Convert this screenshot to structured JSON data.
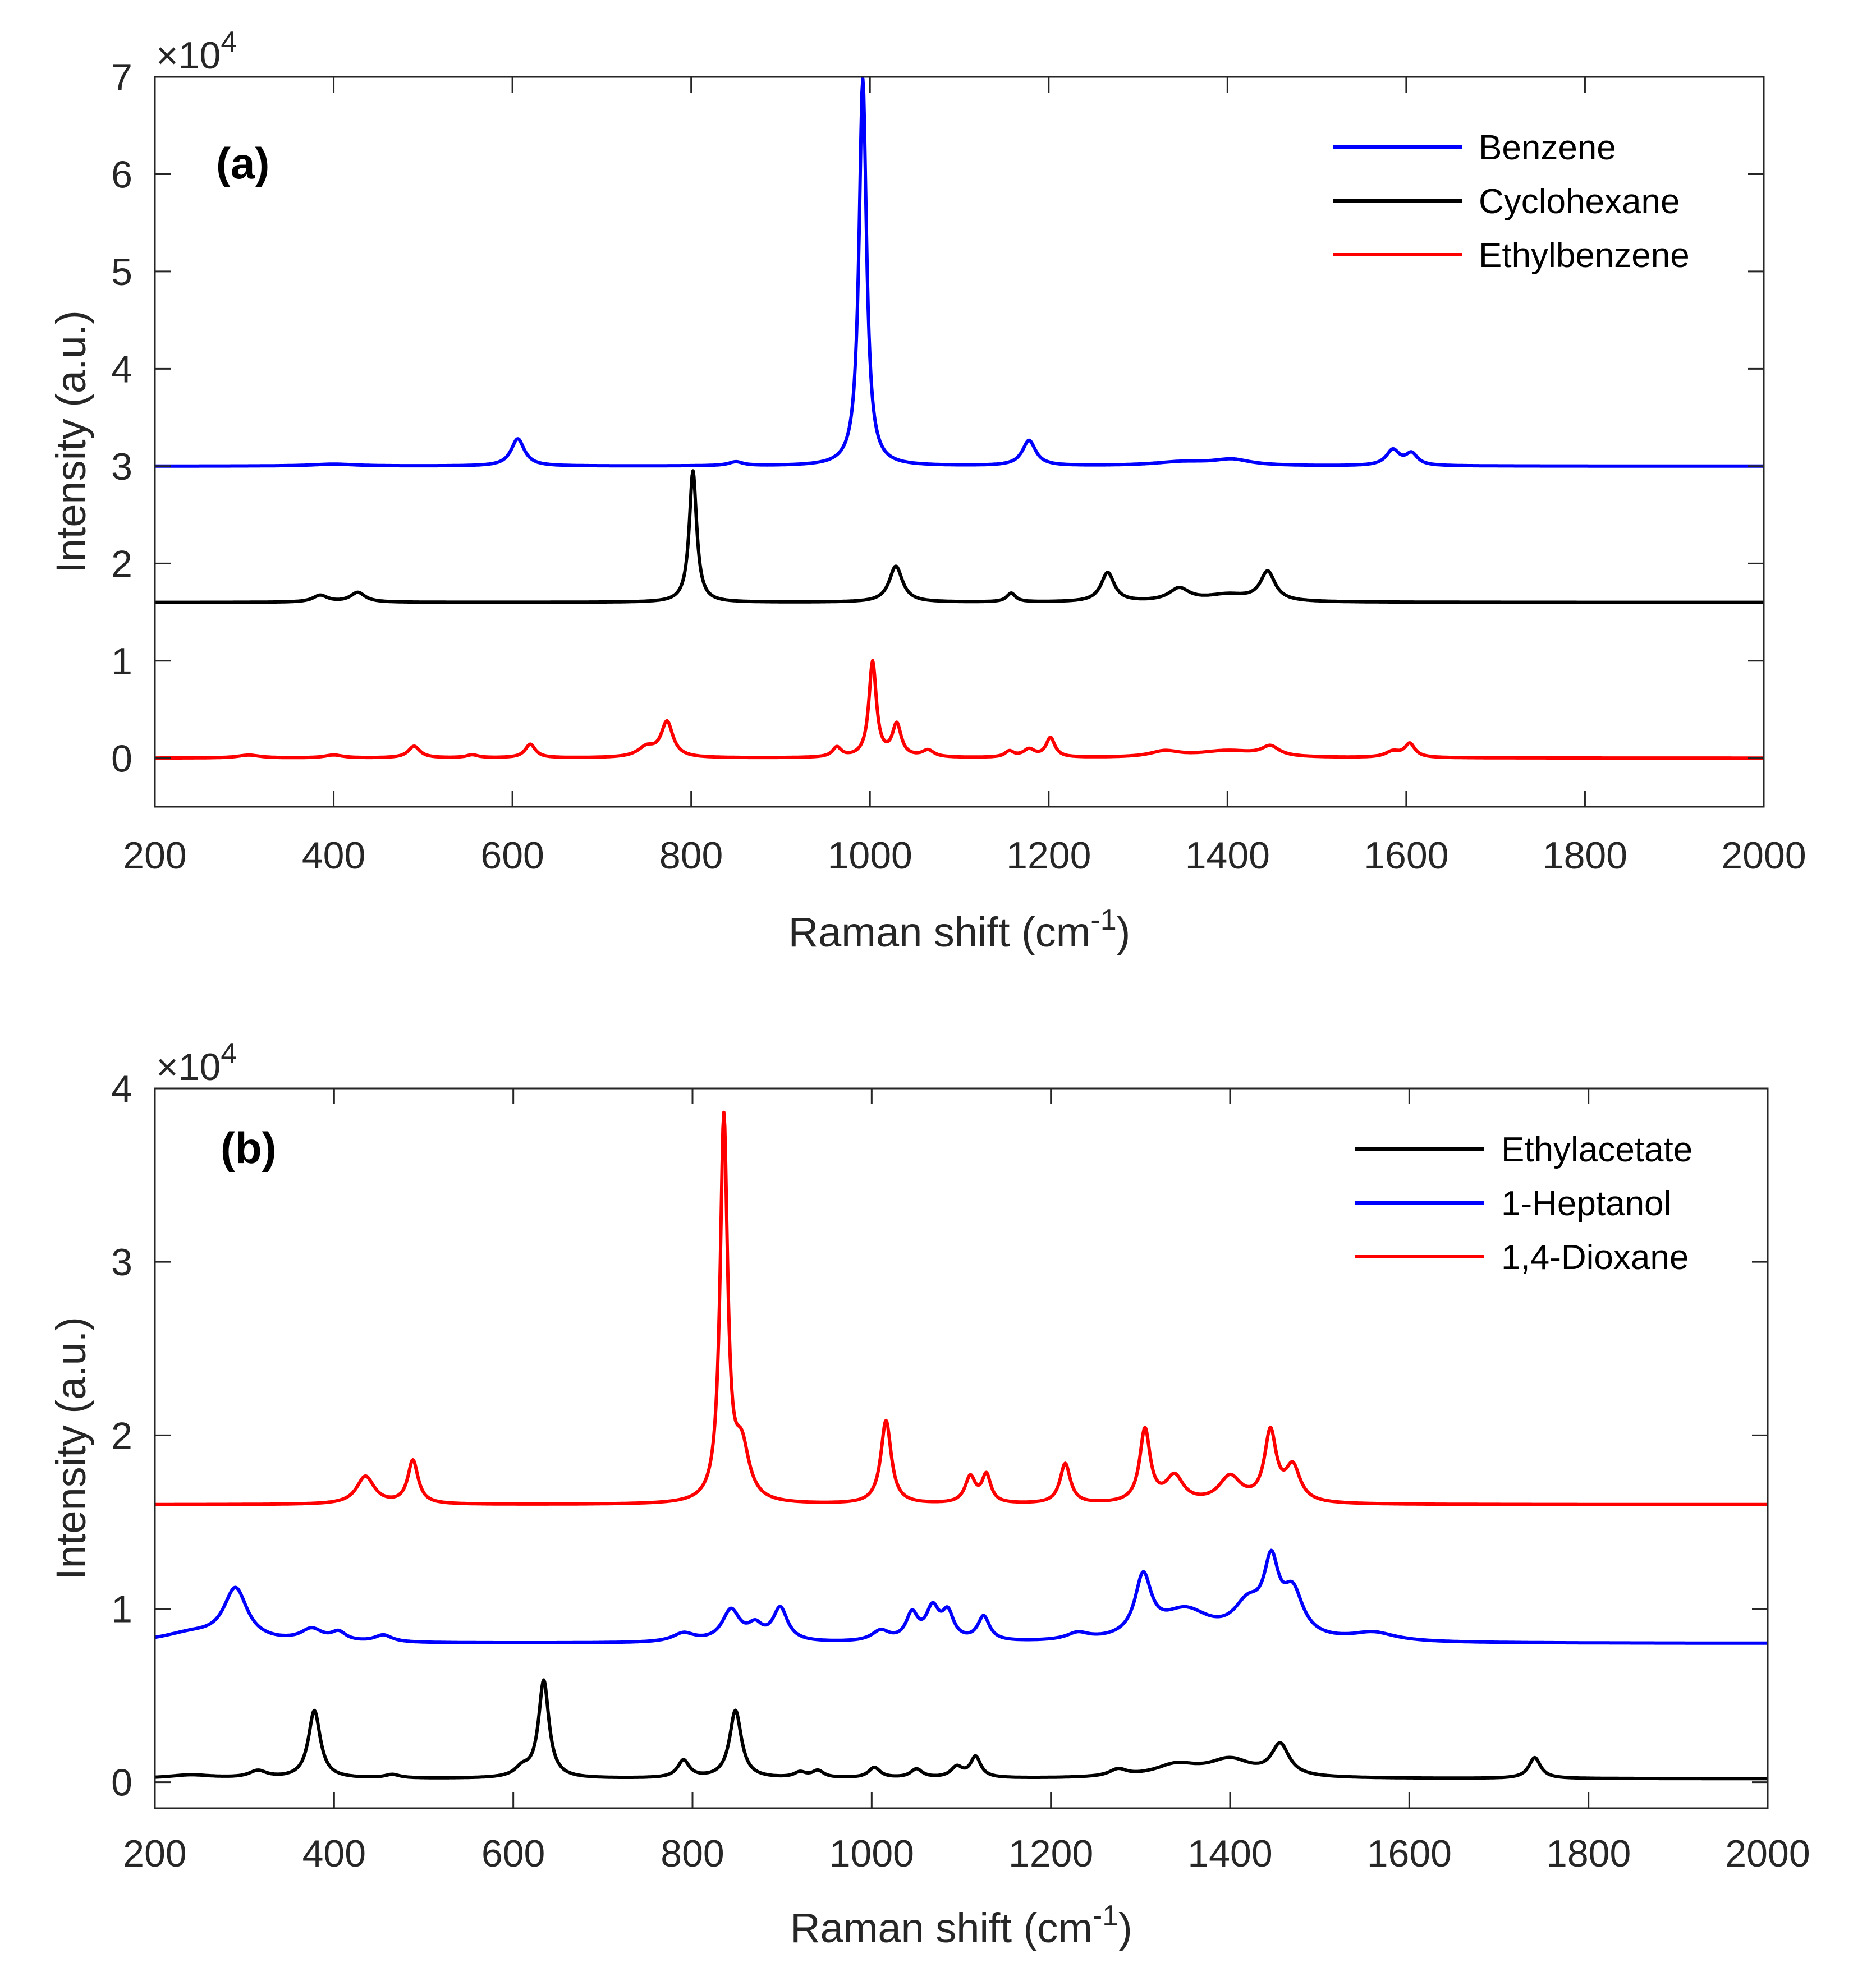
{
  "chart_data": [
    {
      "type": "line",
      "panel": "(a)",
      "xlabel": "Raman shift (cm",
      "xlabel_sup": "-1",
      "xlabel_end": ")",
      "ylabel": "Intensity (a.u.)",
      "exponent_label": "×10",
      "exponent_power": "4",
      "xlim": [
        200,
        2000
      ],
      "ylim": [
        -0.5,
        7
      ],
      "xticks": [
        200,
        400,
        600,
        800,
        1000,
        1200,
        1400,
        1600,
        1800,
        2000
      ],
      "yticks": [
        0,
        1,
        2,
        3,
        4,
        5,
        6,
        7
      ],
      "legend_position": "top-right",
      "series": [
        {
          "name": "Benzene",
          "color": "#0000ff",
          "baseline": 3.0,
          "peaks": [
            [
              400,
              0.02,
              30
            ],
            [
              606,
              0.28,
              9
            ],
            [
              850,
              0.04,
              10
            ],
            [
              992,
              3.98,
              5
            ],
            [
              1178,
              0.26,
              9
            ],
            [
              1350,
              0.04,
              40
            ],
            [
              1405,
              0.06,
              25
            ],
            [
              1585,
              0.16,
              9
            ],
            [
              1606,
              0.12,
              8
            ]
          ]
        },
        {
          "name": "Cyclohexane",
          "color": "#000000",
          "baseline": 1.6,
          "peaks": [
            [
              385,
              0.07,
              10
            ],
            [
              427,
              0.1,
              10
            ],
            [
              802,
              1.35,
              5
            ],
            [
              1029,
              0.37,
              9
            ],
            [
              1158,
              0.09,
              6
            ],
            [
              1266,
              0.3,
              9
            ],
            [
              1346,
              0.13,
              14
            ],
            [
              1400,
              0.07,
              30
            ],
            [
              1445,
              0.3,
              10
            ]
          ]
        },
        {
          "name": "Ethylbenzene",
          "color": "#ff0000",
          "baseline": 0.0,
          "peaks": [
            [
              305,
              0.03,
              15
            ],
            [
              400,
              0.03,
              12
            ],
            [
              490,
              0.12,
              8
            ],
            [
              555,
              0.03,
              8
            ],
            [
              620,
              0.14,
              7
            ],
            [
              750,
              0.1,
              12
            ],
            [
              773,
              0.36,
              8
            ],
            [
              963,
              0.1,
              6
            ],
            [
              1003,
              0.98,
              5
            ],
            [
              1030,
              0.33,
              6
            ],
            [
              1065,
              0.07,
              8
            ],
            [
              1156,
              0.06,
              6
            ],
            [
              1178,
              0.08,
              8
            ],
            [
              1202,
              0.2,
              6
            ],
            [
              1330,
              0.06,
              20
            ],
            [
              1400,
              0.07,
              40
            ],
            [
              1448,
              0.1,
              12
            ],
            [
              1585,
              0.06,
              10
            ],
            [
              1604,
              0.14,
              7
            ]
          ]
        }
      ]
    },
    {
      "type": "line",
      "panel": "(b)",
      "xlabel": "Raman shift (cm",
      "xlabel_sup": "-1",
      "xlabel_end": ")",
      "ylabel": "Intensity (a.u.)",
      "exponent_label": "×10",
      "exponent_power": "4",
      "xlim": [
        200,
        2000
      ],
      "ylim": [
        -0.15,
        4
      ],
      "xticks": [
        200,
        400,
        600,
        800,
        1000,
        1200,
        1400,
        1600,
        1800,
        2000
      ],
      "yticks": [
        0,
        1,
        2,
        3,
        4
      ],
      "legend_position": "top-right",
      "series": [
        {
          "name": "Ethylacetate",
          "color": "#000000",
          "baseline": 0.02,
          "peaks": [
            [
              240,
              0.02,
              30
            ],
            [
              315,
              0.04,
              12
            ],
            [
              378,
              0.39,
              8
            ],
            [
              465,
              0.02,
              10
            ],
            [
              610,
              0.05,
              10
            ],
            [
              634,
              0.56,
              7
            ],
            [
              790,
              0.1,
              8
            ],
            [
              848,
              0.39,
              8
            ],
            [
              920,
              0.03,
              8
            ],
            [
              940,
              0.04,
              8
            ],
            [
              1003,
              0.06,
              8
            ],
            [
              1050,
              0.05,
              8
            ],
            [
              1095,
              0.06,
              8
            ],
            [
              1116,
              0.12,
              7
            ],
            [
              1275,
              0.04,
              12
            ],
            [
              1340,
              0.07,
              30
            ],
            [
              1400,
              0.1,
              30
            ],
            [
              1456,
              0.18,
              12
            ],
            [
              1740,
              0.12,
              8
            ]
          ]
        },
        {
          "name": "1-Heptanol",
          "color": "#0000ff",
          "baseline": 0.8,
          "peaks": [
            [
              240,
              0.05,
              40
            ],
            [
              290,
              0.3,
              16
            ],
            [
              375,
              0.07,
              15
            ],
            [
              405,
              0.05,
              10
            ],
            [
              455,
              0.04,
              12
            ],
            [
              790,
              0.05,
              15
            ],
            [
              843,
              0.18,
              12
            ],
            [
              870,
              0.08,
              10
            ],
            [
              898,
              0.19,
              10
            ],
            [
              1010,
              0.06,
              12
            ],
            [
              1045,
              0.15,
              8
            ],
            [
              1068,
              0.18,
              9
            ],
            [
              1085,
              0.15,
              8
            ],
            [
              1125,
              0.14,
              8
            ],
            [
              1230,
              0.04,
              15
            ],
            [
              1303,
              0.34,
              11
            ],
            [
              1350,
              0.17,
              35
            ],
            [
              1420,
              0.18,
              20
            ],
            [
              1446,
              0.38,
              10
            ],
            [
              1470,
              0.25,
              14
            ],
            [
              1560,
              0.05,
              30
            ]
          ]
        },
        {
          "name": "1,4-Dioxane",
          "color": "#ff0000",
          "baseline": 1.6,
          "peaks": [
            [
              435,
              0.16,
              12
            ],
            [
              488,
              0.25,
              7
            ],
            [
              835,
              2.2,
              5
            ],
            [
              855,
              0.3,
              10
            ],
            [
              1016,
              0.48,
              7
            ],
            [
              1110,
              0.15,
              7
            ],
            [
              1128,
              0.16,
              6
            ],
            [
              1216,
              0.23,
              7
            ],
            [
              1305,
              0.42,
              7
            ],
            [
              1338,
              0.15,
              12
            ],
            [
              1400,
              0.15,
              15
            ],
            [
              1445,
              0.4,
              8
            ],
            [
              1470,
              0.2,
              10
            ]
          ]
        }
      ]
    }
  ]
}
